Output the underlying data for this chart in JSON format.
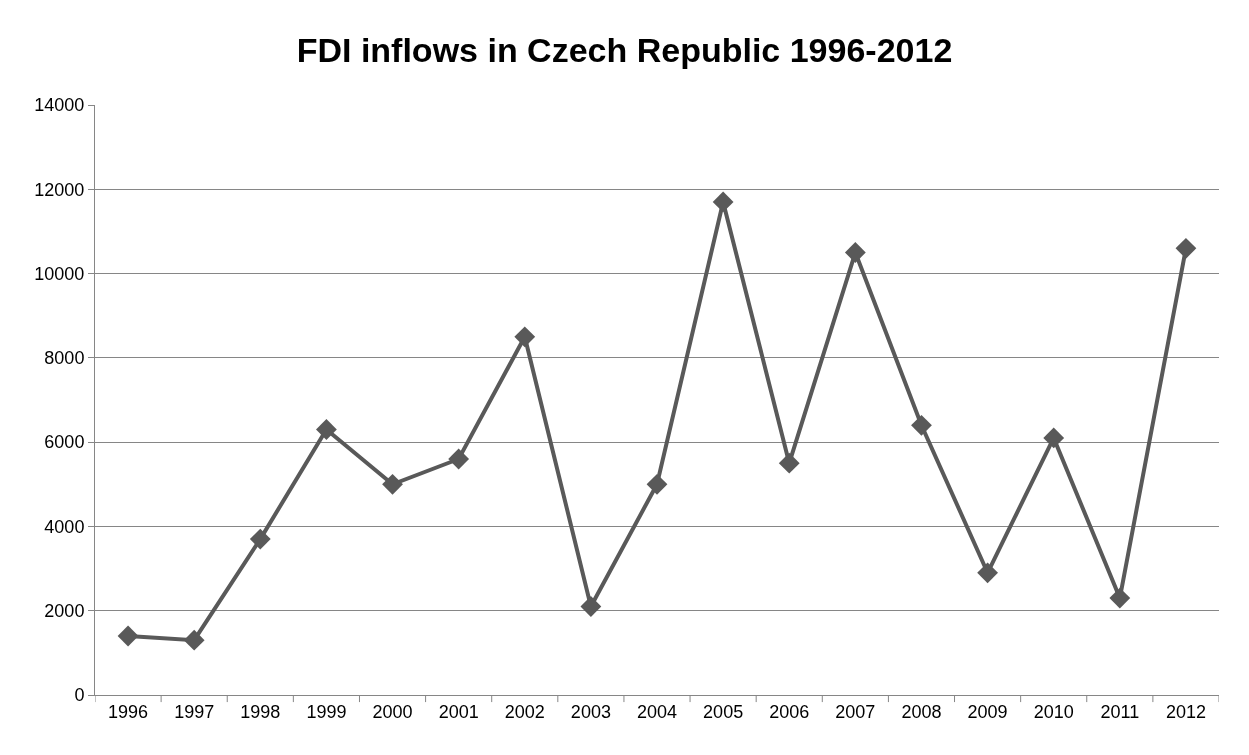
{
  "chart_data": {
    "type": "line",
    "title": "FDI inflows in Czech Republic 1996-2012",
    "categories": [
      "1996",
      "1997",
      "1998",
      "1999",
      "2000",
      "2001",
      "2002",
      "2003",
      "2004",
      "2005",
      "2006",
      "2007",
      "2008",
      "2009",
      "2010",
      "2011",
      "2012"
    ],
    "series": [
      {
        "color": "#595959",
        "values": [
          1400,
          1300,
          3700,
          6300,
          5000,
          5600,
          8500,
          2100,
          5000,
          11700,
          5500,
          10500,
          6400,
          2900,
          6100,
          2300,
          10600
        ]
      }
    ],
    "ylim": [
      0,
      14000
    ],
    "yticks": [
      0,
      2000,
      4000,
      6000,
      8000,
      10000,
      12000,
      14000
    ],
    "grid": "y",
    "marker": "diamond",
    "line_style": "solid"
  }
}
